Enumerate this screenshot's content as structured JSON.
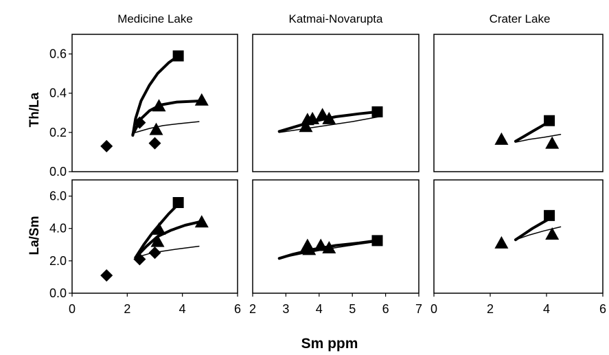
{
  "figure": {
    "columns": [
      "Medicine Lake",
      "Katmai-Novarupta",
      "Crater Lake"
    ],
    "xlabel": "Sm ppm",
    "ylabels": [
      "Th/La",
      "La/Sm"
    ]
  },
  "style": {
    "axis_color": "#000000",
    "marker_color": "#000000"
  },
  "chart_data": [
    {
      "type": "scatter",
      "title": "Medicine Lake",
      "ylabel": "Th/La",
      "xlabel": "",
      "xlim": [
        0,
        6
      ],
      "ylim": [
        0,
        0.7
      ],
      "xticks": [],
      "yticks": [
        "0.0",
        "0.2",
        "0.4",
        "0.6"
      ],
      "series": [
        {
          "marker": "diamond",
          "values": [
            [
              1.25,
              0.13
            ],
            [
              3.0,
              0.145
            ],
            [
              2.45,
              0.25
            ]
          ]
        },
        {
          "marker": "triangle",
          "values": [
            [
              3.05,
              0.215
            ],
            [
              3.15,
              0.335
            ],
            [
              4.7,
              0.365
            ]
          ]
        },
        {
          "marker": "square",
          "values": [
            [
              3.85,
              0.59
            ]
          ]
        },
        {
          "line": "thick",
          "values": [
            [
              2.2,
              0.185
            ],
            [
              2.3,
              0.27
            ],
            [
              2.5,
              0.36
            ],
            [
              2.8,
              0.44
            ],
            [
              3.1,
              0.5
            ],
            [
              3.5,
              0.555
            ],
            [
              3.85,
              0.59
            ]
          ]
        },
        {
          "line": "thick",
          "values": [
            [
              2.2,
              0.19
            ],
            [
              2.5,
              0.27
            ],
            [
              2.8,
              0.31
            ],
            [
              3.2,
              0.34
            ],
            [
              3.8,
              0.355
            ],
            [
              4.6,
              0.36
            ]
          ]
        },
        {
          "line": "thin",
          "values": [
            [
              2.3,
              0.2
            ],
            [
              2.8,
              0.22
            ],
            [
              3.3,
              0.235
            ],
            [
              3.9,
              0.245
            ],
            [
              4.6,
              0.255
            ]
          ]
        }
      ]
    },
    {
      "type": "scatter",
      "title": "Katmai-Novarupta",
      "ylabel": "",
      "xlabel": "",
      "xlim": [
        2,
        7
      ],
      "ylim": [
        0,
        0.7
      ],
      "xticks": [],
      "yticks": [],
      "series": [
        {
          "marker": "triangle",
          "values": [
            [
              3.6,
              0.23
            ],
            [
              3.65,
              0.265
            ],
            [
              3.8,
              0.27
            ],
            [
              4.1,
              0.29
            ],
            [
              4.3,
              0.27
            ]
          ]
        },
        {
          "marker": "square",
          "values": [
            [
              5.75,
              0.305
            ]
          ]
        },
        {
          "line": "thick",
          "values": [
            [
              2.8,
              0.205
            ],
            [
              3.2,
              0.225
            ],
            [
              3.8,
              0.255
            ],
            [
              4.5,
              0.28
            ],
            [
              5.2,
              0.295
            ],
            [
              5.75,
              0.305
            ]
          ]
        },
        {
          "line": "thin",
          "values": [
            [
              2.8,
              0.2
            ],
            [
              3.4,
              0.215
            ],
            [
              4.2,
              0.235
            ],
            [
              5.0,
              0.255
            ],
            [
              5.8,
              0.28
            ]
          ]
        }
      ]
    },
    {
      "type": "scatter",
      "title": "Crater Lake",
      "ylabel": "",
      "xlabel": "",
      "xlim": [
        0,
        6
      ],
      "ylim": [
        0,
        0.7
      ],
      "xticks": [],
      "yticks": [],
      "series": [
        {
          "marker": "triangle",
          "values": [
            [
              2.4,
              0.165
            ],
            [
              4.2,
              0.145
            ]
          ]
        },
        {
          "marker": "square",
          "values": [
            [
              4.1,
              0.26
            ]
          ]
        },
        {
          "line": "thick",
          "values": [
            [
              2.9,
              0.155
            ],
            [
              3.2,
              0.18
            ],
            [
              3.5,
              0.205
            ],
            [
              3.8,
              0.23
            ],
            [
              4.1,
              0.255
            ]
          ]
        },
        {
          "line": "thin",
          "values": [
            [
              2.9,
              0.15
            ],
            [
              3.4,
              0.165
            ],
            [
              3.9,
              0.175
            ],
            [
              4.5,
              0.19
            ]
          ]
        }
      ]
    },
    {
      "type": "scatter",
      "title": "",
      "ylabel": "La/Sm",
      "xlabel": "",
      "xlim": [
        0,
        6
      ],
      "ylim": [
        0,
        7
      ],
      "xticks": [
        "0",
        "2",
        "4",
        "6"
      ],
      "yticks": [
        "0.0",
        "2.0",
        "4.0",
        "6.0"
      ],
      "series": [
        {
          "marker": "diamond",
          "values": [
            [
              1.25,
              1.1
            ],
            [
              3.0,
              2.5
            ],
            [
              2.45,
              2.1
            ]
          ]
        },
        {
          "marker": "triangle",
          "values": [
            [
              3.1,
              3.2
            ],
            [
              3.15,
              3.95
            ],
            [
              4.7,
              4.4
            ]
          ]
        },
        {
          "marker": "square",
          "values": [
            [
              3.85,
              5.6
            ]
          ]
        },
        {
          "line": "thick",
          "values": [
            [
              2.3,
              2.2
            ],
            [
              2.6,
              3.0
            ],
            [
              2.9,
              3.7
            ],
            [
              3.2,
              4.3
            ],
            [
              3.5,
              4.9
            ],
            [
              3.85,
              5.5
            ]
          ]
        },
        {
          "line": "thick",
          "values": [
            [
              2.3,
              2.2
            ],
            [
              2.7,
              2.9
            ],
            [
              3.1,
              3.5
            ],
            [
              3.6,
              3.9
            ],
            [
              4.1,
              4.2
            ],
            [
              4.6,
              4.4
            ]
          ]
        },
        {
          "line": "thin",
          "values": [
            [
              2.3,
              2.2
            ],
            [
              2.8,
              2.45
            ],
            [
              3.3,
              2.6
            ],
            [
              3.9,
              2.75
            ],
            [
              4.6,
              2.9
            ]
          ]
        }
      ]
    },
    {
      "type": "scatter",
      "title": "",
      "ylabel": "",
      "xlabel": "",
      "xlim": [
        2,
        7
      ],
      "ylim": [
        0,
        7
      ],
      "xticks": [
        "2",
        "3",
        "4",
        "5",
        "6",
        "7"
      ],
      "yticks": [],
      "series": [
        {
          "marker": "triangle",
          "values": [
            [
              3.65,
              2.95
            ],
            [
              3.7,
              2.7
            ],
            [
              4.05,
              2.95
            ],
            [
              4.3,
              2.8
            ]
          ]
        },
        {
          "marker": "square",
          "values": [
            [
              5.75,
              3.25
            ]
          ]
        },
        {
          "line": "thick",
          "values": [
            [
              2.8,
              2.15
            ],
            [
              3.2,
              2.4
            ],
            [
              3.8,
              2.7
            ],
            [
              4.5,
              2.95
            ],
            [
              5.2,
              3.1
            ],
            [
              5.75,
              3.25
            ]
          ]
        },
        {
          "line": "thin",
          "values": [
            [
              2.8,
              2.15
            ],
            [
              3.5,
              2.45
            ],
            [
              4.3,
              2.75
            ],
            [
              5.1,
              3.0
            ],
            [
              5.8,
              3.2
            ]
          ]
        }
      ]
    },
    {
      "type": "scatter",
      "title": "",
      "ylabel": "",
      "xlabel": "",
      "xlim": [
        0,
        6
      ],
      "ylim": [
        0,
        7
      ],
      "xticks": [
        "0",
        "2",
        "4",
        "6"
      ],
      "yticks": [],
      "series": [
        {
          "marker": "triangle",
          "values": [
            [
              2.4,
              3.1
            ],
            [
              4.2,
              3.65
            ]
          ]
        },
        {
          "marker": "square",
          "values": [
            [
              4.1,
              4.8
            ]
          ]
        },
        {
          "line": "thick",
          "values": [
            [
              2.9,
              3.3
            ],
            [
              3.2,
              3.65
            ],
            [
              3.5,
              4.0
            ],
            [
              3.8,
              4.3
            ],
            [
              4.1,
              4.6
            ]
          ]
        },
        {
          "line": "thin",
          "values": [
            [
              2.9,
              3.3
            ],
            [
              3.4,
              3.6
            ],
            [
              3.9,
              3.85
            ],
            [
              4.5,
              4.1
            ]
          ]
        }
      ]
    }
  ]
}
